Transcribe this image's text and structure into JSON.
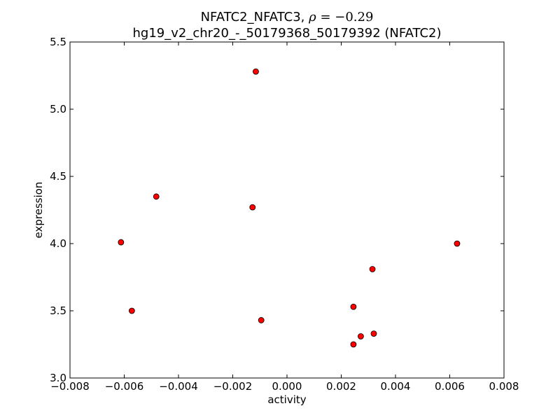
{
  "chart_data": {
    "type": "scatter",
    "title_prefix": "NFATC2_NFATC3, ",
    "title_rho_symbol": "ρ",
    "title_rho_value": " = −0.29",
    "subtitle": "hg19_v2_chr20_-_50179368_50179392 (NFATC2)",
    "xlabel": "activity",
    "ylabel": "expression",
    "xlim": [
      -0.008,
      0.008
    ],
    "ylim": [
      3.0,
      5.5
    ],
    "x_ticks": [
      {
        "value": -0.008,
        "label": "−0.008"
      },
      {
        "value": -0.006,
        "label": "−0.006"
      },
      {
        "value": -0.004,
        "label": "−0.004"
      },
      {
        "value": -0.002,
        "label": "−0.002"
      },
      {
        "value": 0.0,
        "label": "0.000"
      },
      {
        "value": 0.002,
        "label": "0.002"
      },
      {
        "value": 0.004,
        "label": "0.004"
      },
      {
        "value": 0.006,
        "label": "0.006"
      },
      {
        "value": 0.008,
        "label": "0.008"
      }
    ],
    "y_ticks": [
      {
        "value": 3.0,
        "label": "3.0"
      },
      {
        "value": 3.5,
        "label": "3.5"
      },
      {
        "value": 4.0,
        "label": "4.0"
      },
      {
        "value": 4.5,
        "label": "4.5"
      },
      {
        "value": 5.0,
        "label": "5.0"
      },
      {
        "value": 5.5,
        "label": "5.5"
      }
    ],
    "grid": false,
    "marker_color": "#ff0000",
    "marker_edge_color": "#000000",
    "points": [
      {
        "x": -0.00115,
        "y": 5.28
      },
      {
        "x": -0.00482,
        "y": 4.35
      },
      {
        "x": -0.00127,
        "y": 4.27
      },
      {
        "x": -0.00612,
        "y": 4.01
      },
      {
        "x": 0.00627,
        "y": 4.0
      },
      {
        "x": 0.00315,
        "y": 3.81
      },
      {
        "x": -0.00572,
        "y": 3.5
      },
      {
        "x": 0.00245,
        "y": 3.53
      },
      {
        "x": -0.00095,
        "y": 3.43
      },
      {
        "x": 0.0032,
        "y": 3.33
      },
      {
        "x": 0.00272,
        "y": 3.31
      },
      {
        "x": 0.00245,
        "y": 3.25
      }
    ]
  }
}
